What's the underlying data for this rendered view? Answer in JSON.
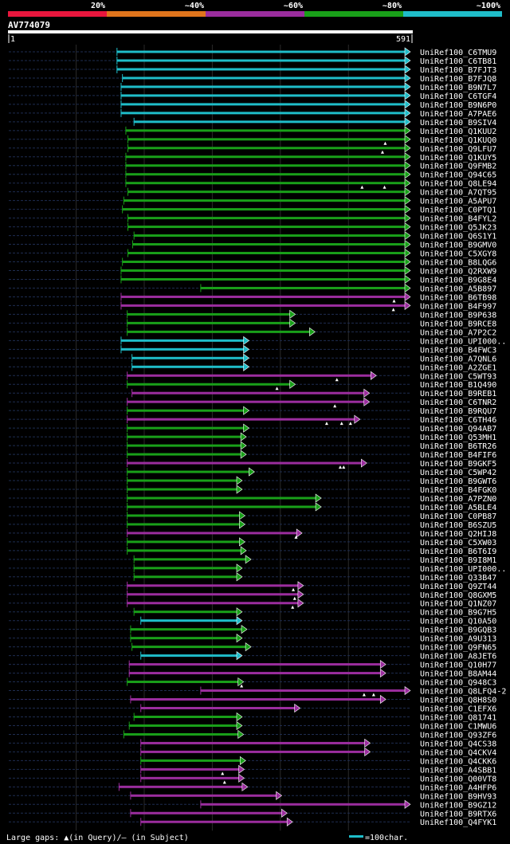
{
  "query_label": "AV774079",
  "query_start": "1",
  "query_end": "591",
  "identity_legend": [
    {
      "label": "20%",
      "color": "#e8163d"
    },
    {
      "label": "~40%",
      "color": "#e0751c"
    },
    {
      "label": "~60%",
      "color": "#9b2d9e"
    },
    {
      "label": "~80%",
      "color": "#19a019"
    },
    {
      "label": "~100%",
      "color": "#1fbdc9"
    }
  ],
  "footer": {
    "gaps_text": "Large gaps: ▲(in Query)/– (in Subject)",
    "scale_text": "=100char.",
    "scale_color": "#1fbdc9"
  },
  "chart_data": {
    "type": "alignment",
    "query_length": 591,
    "colors": {
      "cyan": "#1fbdc9",
      "green": "#19a019",
      "purple": "#9b2d9e"
    },
    "hits": [
      {
        "name": "UniRef100_C6TMU9",
        "start": 160,
        "end": 591,
        "color": "cyan",
        "marks": []
      },
      {
        "name": "UniRef100_C6TB81",
        "start": 160,
        "end": 591,
        "color": "cyan",
        "marks": []
      },
      {
        "name": "UniRef100_B7FJT3",
        "start": 160,
        "end": 591,
        "color": "cyan",
        "marks": []
      },
      {
        "name": "UniRef100_B7FJQ8",
        "start": 168,
        "end": 591,
        "color": "cyan",
        "marks": []
      },
      {
        "name": "UniRef100_B9N7L7",
        "start": 166,
        "end": 591,
        "color": "cyan",
        "marks": []
      },
      {
        "name": "UniRef100_C6TGF4",
        "start": 166,
        "end": 591,
        "color": "cyan",
        "marks": []
      },
      {
        "name": "UniRef100_B9N6P0",
        "start": 166,
        "end": 591,
        "color": "cyan",
        "marks": []
      },
      {
        "name": "UniRef100_A7PAE6",
        "start": 166,
        "end": 591,
        "color": "cyan",
        "marks": []
      },
      {
        "name": "UniRef100_B9SIV4",
        "start": 185,
        "end": 591,
        "color": "cyan",
        "marks": []
      },
      {
        "name": "UniRef100_Q1KUU2",
        "start": 173,
        "end": 591,
        "color": "green",
        "marks": []
      },
      {
        "name": "UniRef100_Q1KUQ0",
        "start": 176,
        "end": 591,
        "color": "green",
        "marks": [
          554
        ]
      },
      {
        "name": "UniRef100_Q9LFU7",
        "start": 176,
        "end": 591,
        "color": "green",
        "marks": [
          550
        ]
      },
      {
        "name": "UniRef100_Q1KUY5",
        "start": 173,
        "end": 591,
        "color": "green",
        "marks": []
      },
      {
        "name": "UniRef100_Q9FMB2",
        "start": 173,
        "end": 591,
        "color": "green",
        "marks": []
      },
      {
        "name": "UniRef100_Q94C65",
        "start": 173,
        "end": 591,
        "color": "green",
        "marks": []
      },
      {
        "name": "UniRef100_Q8LE94",
        "start": 173,
        "end": 591,
        "color": "green",
        "marks": [
          520,
          553
        ]
      },
      {
        "name": "UniRef100_A7QT95",
        "start": 176,
        "end": 591,
        "color": "green",
        "marks": []
      },
      {
        "name": "UniRef100_A5APU7",
        "start": 170,
        "end": 591,
        "color": "green",
        "marks": []
      },
      {
        "name": "UniRef100_C0PTQ1",
        "start": 168,
        "end": 591,
        "color": "green",
        "marks": []
      },
      {
        "name": "UniRef100_B4FYL2",
        "start": 176,
        "end": 591,
        "color": "green",
        "marks": []
      },
      {
        "name": "UniRef100_Q5JK23",
        "start": 176,
        "end": 591,
        "color": "green",
        "marks": []
      },
      {
        "name": "UniRef100_Q6S1Y1",
        "start": 185,
        "end": 591,
        "color": "green",
        "marks": []
      },
      {
        "name": "UniRef100_B9GMV0",
        "start": 183,
        "end": 591,
        "color": "green",
        "marks": []
      },
      {
        "name": "UniRef100_C5XGY8",
        "start": 176,
        "end": 591,
        "color": "green",
        "marks": []
      },
      {
        "name": "UniRef100_B8LQG6",
        "start": 168,
        "end": 591,
        "color": "green",
        "marks": []
      },
      {
        "name": "UniRef100_Q2RXW9",
        "start": 166,
        "end": 591,
        "color": "green",
        "marks": []
      },
      {
        "name": "UniRef100_B9G8E4",
        "start": 166,
        "end": 591,
        "color": "green",
        "marks": []
      },
      {
        "name": "UniRef100_A5B897",
        "start": 283,
        "end": 591,
        "color": "green",
        "marks": []
      },
      {
        "name": "UniRef100_B6TB98",
        "start": 166,
        "end": 591,
        "color": "purple",
        "marks": [
          567
        ]
      },
      {
        "name": "UniRef100_B4F997",
        "start": 166,
        "end": 591,
        "color": "purple",
        "marks": [
          566
        ]
      },
      {
        "name": "UniRef100_B9P638",
        "start": 175,
        "end": 422,
        "color": "green",
        "marks": []
      },
      {
        "name": "UniRef100_B9RCE8",
        "start": 175,
        "end": 422,
        "color": "green",
        "marks": []
      },
      {
        "name": "UniRef100_A7P2C2",
        "start": 175,
        "end": 451,
        "color": "green",
        "marks": []
      },
      {
        "name": "UniRef100_UPI000..",
        "start": 166,
        "end": 354,
        "color": "cyan",
        "marks": []
      },
      {
        "name": "UniRef100_B4FWC3",
        "start": 166,
        "end": 354,
        "color": "cyan",
        "marks": []
      },
      {
        "name": "UniRef100_A7QNL6",
        "start": 182,
        "end": 354,
        "color": "cyan",
        "marks": []
      },
      {
        "name": "UniRef100_A2ZGE1",
        "start": 182,
        "end": 354,
        "color": "cyan",
        "marks": []
      },
      {
        "name": "UniRef100_C5WT93",
        "start": 175,
        "end": 541,
        "color": "purple",
        "marks": [
          483
        ]
      },
      {
        "name": "UniRef100_B1Q490",
        "start": 175,
        "end": 422,
        "color": "green",
        "marks": [
          395
        ]
      },
      {
        "name": "UniRef100_B9REB1",
        "start": 182,
        "end": 531,
        "color": "purple",
        "marks": []
      },
      {
        "name": "UniRef100_C6TNR2",
        "start": 175,
        "end": 531,
        "color": "purple",
        "marks": [
          480
        ]
      },
      {
        "name": "UniRef100_B9RQU7",
        "start": 175,
        "end": 354,
        "color": "green",
        "marks": []
      },
      {
        "name": "UniRef100_C6TH46",
        "start": 175,
        "end": 517,
        "color": "purple",
        "marks": [
          468,
          490,
          503
        ]
      },
      {
        "name": "UniRef100_Q94AB7",
        "start": 175,
        "end": 354,
        "color": "green",
        "marks": []
      },
      {
        "name": "UniRef100_Q53MH1",
        "start": 175,
        "end": 350,
        "color": "green",
        "marks": []
      },
      {
        "name": "UniRef100_B6TR26",
        "start": 175,
        "end": 350,
        "color": "green",
        "marks": []
      },
      {
        "name": "UniRef100_B4FIF6",
        "start": 175,
        "end": 350,
        "color": "green",
        "marks": []
      },
      {
        "name": "UniRef100_B9GKF5",
        "start": 175,
        "end": 527,
        "color": "purple",
        "marks": [
          488,
          493
        ]
      },
      {
        "name": "UniRef100_C5WP42",
        "start": 175,
        "end": 362,
        "color": "green",
        "marks": []
      },
      {
        "name": "UniRef100_B9GWT6",
        "start": 175,
        "end": 344,
        "color": "green",
        "marks": []
      },
      {
        "name": "UniRef100_B4FGK0",
        "start": 175,
        "end": 344,
        "color": "green",
        "marks": []
      },
      {
        "name": "UniRef100_A7PZN0",
        "start": 175,
        "end": 460,
        "color": "green",
        "marks": []
      },
      {
        "name": "UniRef100_A5BLE4",
        "start": 175,
        "end": 460,
        "color": "green",
        "marks": []
      },
      {
        "name": "UniRef100_C0PB87",
        "start": 175,
        "end": 348,
        "color": "green",
        "marks": []
      },
      {
        "name": "UniRef100_B6SZU5",
        "start": 175,
        "end": 348,
        "color": "green",
        "marks": []
      },
      {
        "name": "UniRef100_Q2HIJ8",
        "start": 175,
        "end": 432,
        "color": "purple",
        "marks": [
          423
        ]
      },
      {
        "name": "UniRef100_C5XW03",
        "start": 175,
        "end": 348,
        "color": "green",
        "marks": []
      },
      {
        "name": "UniRef100_B6T6I9",
        "start": 175,
        "end": 350,
        "color": "green",
        "marks": []
      },
      {
        "name": "UniRef100_B9I8M1",
        "start": 185,
        "end": 357,
        "color": "green",
        "marks": []
      },
      {
        "name": "UniRef100_UPI000..",
        "start": 185,
        "end": 344,
        "color": "green",
        "marks": []
      },
      {
        "name": "UniRef100_Q33B47",
        "start": 185,
        "end": 344,
        "color": "green",
        "marks": []
      },
      {
        "name": "UniRef100_Q9ZT44",
        "start": 175,
        "end": 434,
        "color": "purple",
        "marks": [
          419
        ]
      },
      {
        "name": "UniRef100_Q8GXM5",
        "start": 175,
        "end": 434,
        "color": "purple",
        "marks": [
          421
        ]
      },
      {
        "name": "UniRef100_Q1NZ07",
        "start": 175,
        "end": 434,
        "color": "purple",
        "marks": [
          418
        ]
      },
      {
        "name": "UniRef100_B9G7H5",
        "start": 185,
        "end": 344,
        "color": "green",
        "marks": []
      },
      {
        "name": "UniRef100_Q10A50",
        "start": 195,
        "end": 344,
        "color": "cyan",
        "marks": []
      },
      {
        "name": "UniRef100_B9GQB3",
        "start": 180,
        "end": 351,
        "color": "green",
        "marks": []
      },
      {
        "name": "UniRef100_A9U313",
        "start": 180,
        "end": 344,
        "color": "green",
        "marks": []
      },
      {
        "name": "UniRef100_Q9FN65",
        "start": 182,
        "end": 357,
        "color": "green",
        "marks": []
      },
      {
        "name": "UniRef100_A8JET6",
        "start": 195,
        "end": 344,
        "color": "cyan",
        "marks": []
      },
      {
        "name": "UniRef100_Q10H77",
        "start": 178,
        "end": 555,
        "color": "purple",
        "marks": []
      },
      {
        "name": "UniRef100_B8AM44",
        "start": 178,
        "end": 555,
        "color": "purple",
        "marks": []
      },
      {
        "name": "UniRef100_Q948C3",
        "start": 175,
        "end": 346,
        "color": "green",
        "marks": [
          343
        ]
      },
      {
        "name": "UniRef100_Q8LFQ4-2",
        "start": 283,
        "end": 591,
        "color": "purple",
        "marks": [
          523,
          537
        ]
      },
      {
        "name": "UniRef100_Q8H8S0",
        "start": 180,
        "end": 555,
        "color": "purple",
        "marks": []
      },
      {
        "name": "UniRef100_C1EFX6",
        "start": 195,
        "end": 429,
        "color": "purple",
        "marks": []
      },
      {
        "name": "UniRef100_Q81741",
        "start": 185,
        "end": 344,
        "color": "green",
        "marks": []
      },
      {
        "name": "UniRef100_C1MWU6",
        "start": 178,
        "end": 344,
        "color": "green",
        "marks": []
      },
      {
        "name": "UniRef100_Q93ZF6",
        "start": 170,
        "end": 346,
        "color": "green",
        "marks": []
      },
      {
        "name": "UniRef100_Q4CS38",
        "start": 195,
        "end": 532,
        "color": "purple",
        "marks": []
      },
      {
        "name": "UniRef100_Q4CKV4",
        "start": 195,
        "end": 532,
        "color": "purple",
        "marks": []
      },
      {
        "name": "UniRef100_Q4CKK6",
        "start": 195,
        "end": 349,
        "color": "green",
        "marks": []
      },
      {
        "name": "UniRef100_A4SBB1",
        "start": 195,
        "end": 347,
        "color": "purple",
        "marks": [
          315
        ]
      },
      {
        "name": "UniRef100_Q00VT8",
        "start": 195,
        "end": 347,
        "color": "purple",
        "marks": [
          318
        ]
      },
      {
        "name": "UniRef100_A4HFP6",
        "start": 163,
        "end": 352,
        "color": "purple",
        "marks": []
      },
      {
        "name": "UniRef100_B9HV93",
        "start": 180,
        "end": 402,
        "color": "purple",
        "marks": []
      },
      {
        "name": "UniRef100_B9GZ12",
        "start": 283,
        "end": 591,
        "color": "purple",
        "marks": []
      },
      {
        "name": "UniRef100_B9RTX6",
        "start": 180,
        "end": 410,
        "color": "purple",
        "marks": []
      },
      {
        "name": "UniRef100_Q4FYK1",
        "start": 195,
        "end": 418,
        "color": "purple",
        "marks": []
      }
    ]
  }
}
